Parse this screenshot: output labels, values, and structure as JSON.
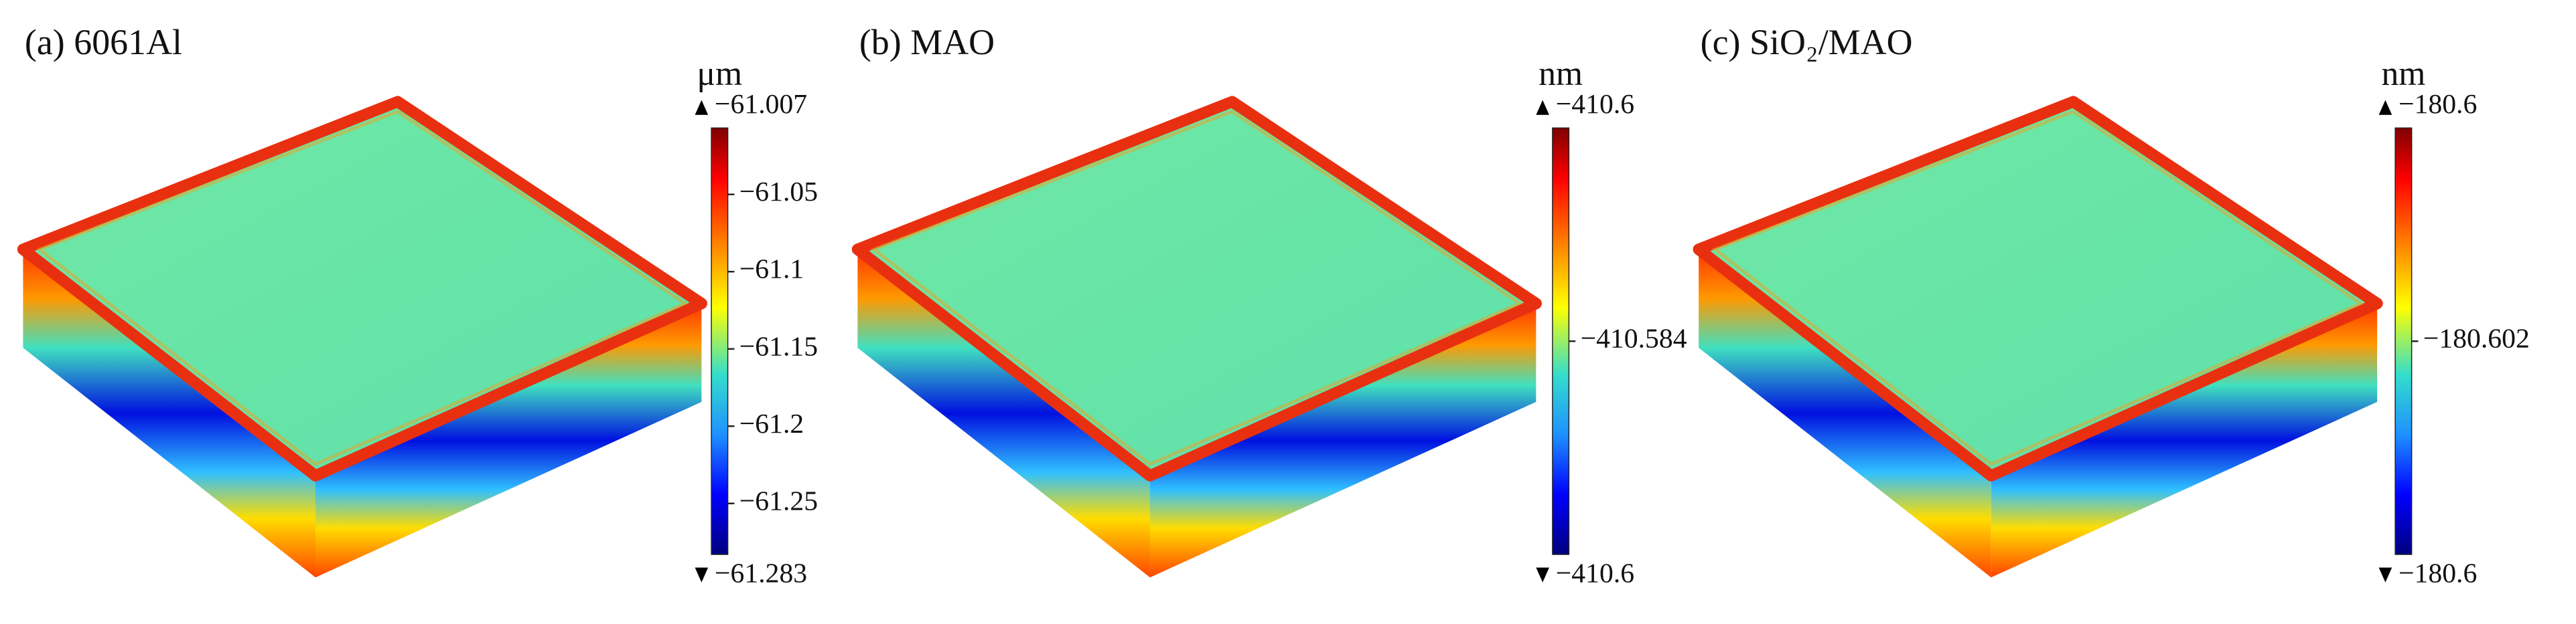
{
  "chart_data": [
    {
      "type": "colorbar-3d",
      "title": "(a) 6061Al",
      "unit": "μm",
      "ylim": [
        -61.283,
        -61.007
      ],
      "yticks": [
        {
          "value": -61.007,
          "label": "−61.007"
        },
        {
          "value": -61.05,
          "label": "−61.05"
        },
        {
          "value": -61.1,
          "label": "−61.1"
        },
        {
          "value": -61.15,
          "label": "−61.15"
        },
        {
          "value": -61.2,
          "label": "−61.2"
        },
        {
          "value": -61.25,
          "label": "−61.25"
        },
        {
          "value": -61.283,
          "label": "−61.283"
        }
      ]
    },
    {
      "type": "colorbar-3d",
      "title": "(b) MAO",
      "unit": "nm",
      "ylim": [
        -410.6,
        -410.568
      ],
      "yticks": [
        {
          "value": -410.568,
          "label": "−410.6"
        },
        {
          "value": -410.584,
          "label": "−410.584"
        },
        {
          "value": -410.6,
          "label": "−410.6"
        }
      ]
    },
    {
      "type": "colorbar-3d",
      "title": "(c) SiO₂/MAO",
      "unit": "nm",
      "ylim": [
        -180.604,
        -180.6
      ],
      "yticks": [
        {
          "value": -180.6,
          "label": "−180.6"
        },
        {
          "value": -180.602,
          "label": "−180.602"
        },
        {
          "value": -180.604,
          "label": "−180.6"
        }
      ]
    }
  ]
}
